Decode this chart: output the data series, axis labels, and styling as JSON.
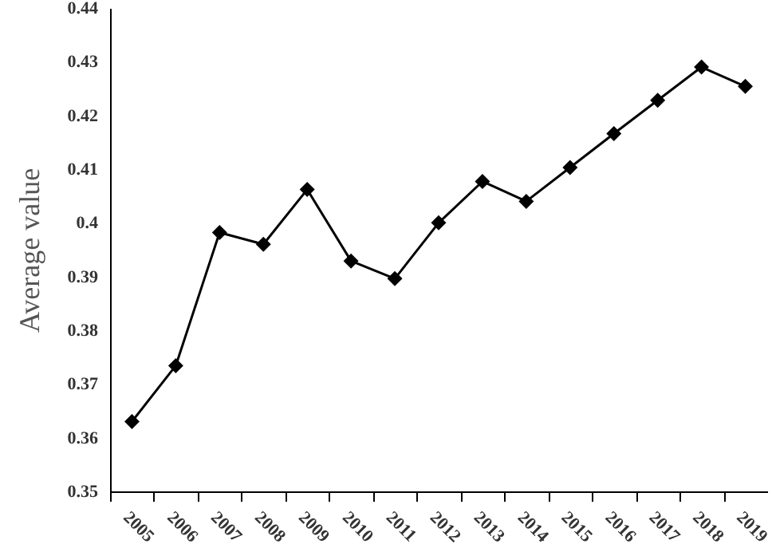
{
  "chart_data": {
    "type": "line",
    "ylabel": "Average value",
    "categories": [
      "2005",
      "2006",
      "2007",
      "2008",
      "2009",
      "2010",
      "2011",
      "2012",
      "2013",
      "2014",
      "2015",
      "2016",
      "2017",
      "2018",
      "2019"
    ],
    "series": [
      {
        "color": "#000000",
        "values": [
          0.363,
          0.3734,
          0.3982,
          0.396,
          0.4062,
          0.3929,
          0.3896,
          0.4,
          0.4077,
          0.404,
          0.4103,
          0.4166,
          0.4228,
          0.429,
          0.4254
        ]
      }
    ],
    "ylim": [
      0.35,
      0.44
    ],
    "yticks": [
      0.35,
      0.36,
      0.37,
      0.38,
      0.39,
      0.4,
      0.41,
      0.42,
      0.43,
      0.44
    ],
    "marker": "diamond",
    "line_style": "solid",
    "grid": false
  }
}
